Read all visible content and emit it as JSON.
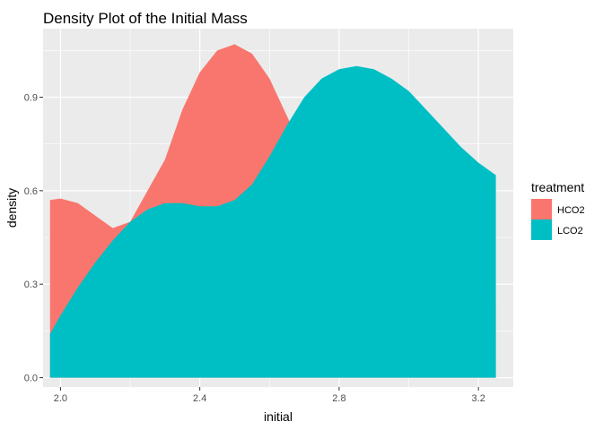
{
  "chart_data": {
    "type": "area",
    "title": "Density Plot of the Initial Mass",
    "xlabel": "initial",
    "ylabel": "density",
    "xlim": [
      1.95,
      3.3
    ],
    "ylim": [
      -0.03,
      1.12
    ],
    "x_ticks": [
      {
        "value": 2.0,
        "label": "2.0"
      },
      {
        "value": 2.4,
        "label": "2.4"
      },
      {
        "value": 2.8,
        "label": "2.8"
      },
      {
        "value": 3.2,
        "label": "3.2"
      }
    ],
    "y_ticks": [
      {
        "value": 0.0,
        "label": "0.0"
      },
      {
        "value": 0.3,
        "label": "0.3"
      },
      {
        "value": 0.6,
        "label": "0.6"
      },
      {
        "value": 0.9,
        "label": "0.9"
      }
    ],
    "legend": {
      "title": "treatment",
      "position": "right"
    },
    "series": [
      {
        "name": "HCO2",
        "color": "#F8766D",
        "x": [
          1.97,
          2.0,
          2.05,
          2.1,
          2.15,
          2.2,
          2.25,
          2.3,
          2.35,
          2.4,
          2.45,
          2.5,
          2.55,
          2.6,
          2.65,
          2.7,
          2.75,
          2.8,
          2.85,
          2.9,
          2.95,
          3.0,
          3.05,
          3.1,
          3.15,
          3.2,
          3.25
        ],
        "y": [
          0.57,
          0.575,
          0.56,
          0.52,
          0.48,
          0.5,
          0.6,
          0.7,
          0.86,
          0.98,
          1.05,
          1.07,
          1.04,
          0.96,
          0.84,
          0.72,
          0.62,
          0.54,
          0.49,
          0.45,
          0.43,
          0.42,
          0.4,
          0.38,
          0.34,
          0.28,
          0.25
        ]
      },
      {
        "name": "LCO2",
        "color": "#00BFC4",
        "x": [
          1.97,
          2.0,
          2.05,
          2.1,
          2.15,
          2.2,
          2.25,
          2.3,
          2.35,
          2.4,
          2.45,
          2.5,
          2.55,
          2.6,
          2.65,
          2.7,
          2.75,
          2.8,
          2.85,
          2.9,
          2.95,
          3.0,
          3.05,
          3.1,
          3.15,
          3.2,
          3.25
        ],
        "y": [
          0.14,
          0.2,
          0.29,
          0.37,
          0.44,
          0.5,
          0.54,
          0.56,
          0.56,
          0.55,
          0.55,
          0.57,
          0.62,
          0.71,
          0.81,
          0.9,
          0.96,
          0.99,
          1.0,
          0.99,
          0.96,
          0.92,
          0.86,
          0.8,
          0.74,
          0.69,
          0.65
        ]
      }
    ]
  }
}
